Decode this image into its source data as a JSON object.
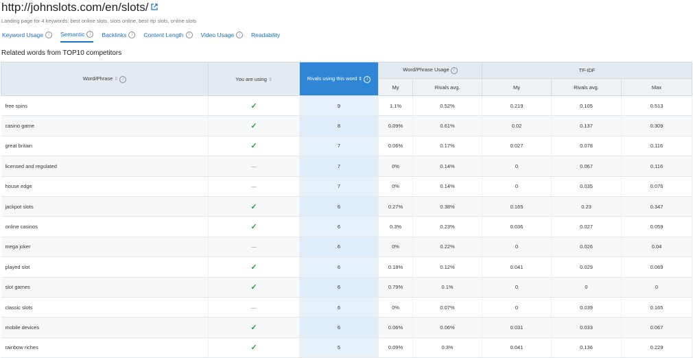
{
  "header": {
    "url": "http://johnslots.com/en/slots/",
    "subtitle": "Landing page for 4 keywords: best online slots, slots online, best rtp slots, online slots"
  },
  "tabs": [
    "Keyword Usage",
    "Semantic",
    "Backlinks",
    "Content Length",
    "Video Usage",
    "Readability"
  ],
  "section_title": "Related words from TOP10 competitors",
  "table": {
    "headers": {
      "word": "Word/Phrase",
      "using": "You are using",
      "rivals": "Rivals using this word",
      "usage": "Word/Phrase Usage",
      "tfidf": "TF-IDF"
    },
    "subheaders": [
      "My",
      "Rivals avg.",
      "My",
      "Rivals avg.",
      "Max"
    ],
    "rows": [
      [
        "free spins",
        "✓",
        "9",
        "1.1%",
        "0.52%",
        "0.219",
        "0.105",
        "0.513"
      ],
      [
        "casino game",
        "✓",
        "8",
        "0.09%",
        "0.61%",
        "0.02",
        "0.137",
        "0.309"
      ],
      [
        "great britain",
        "✓",
        "7",
        "0.06%",
        "0.17%",
        "0.027",
        "0.078",
        "0.116"
      ],
      [
        "licensed and regulated",
        "—",
        "7",
        "0%",
        "0.14%",
        "0",
        "0.067",
        "0.116"
      ],
      [
        "house edge",
        "—",
        "7",
        "0%",
        "0.14%",
        "0",
        "0.035",
        "0.076"
      ],
      [
        "jackpot slots",
        "✓",
        "6",
        "0.27%",
        "0.38%",
        "0.165",
        "0.23",
        "0.347"
      ],
      [
        "online casinos",
        "✓",
        "6",
        "0.3%",
        "0.23%",
        "0.036",
        "0.027",
        "0.059"
      ],
      [
        "mega joker",
        "—",
        "6",
        "0%",
        "0.22%",
        "0",
        "0.026",
        "0.04"
      ],
      [
        "played slot",
        "✓",
        "6",
        "0.18%",
        "0.12%",
        "0.041",
        "0.029",
        "0.069"
      ],
      [
        "slot games",
        "✓",
        "6",
        "0.79%",
        "0.1%",
        "0",
        "0",
        "0"
      ],
      [
        "classic slots",
        "—",
        "6",
        "0%",
        "0.07%",
        "0",
        "0.039",
        "0.165"
      ],
      [
        "mobile devices",
        "✓",
        "6",
        "0.06%",
        "0.06%",
        "0.031",
        "0.033",
        "0.067"
      ],
      [
        "rainbow riches",
        "✓",
        "5",
        "0.09%",
        "0.3%",
        "0.041",
        "0.136",
        "0.229"
      ]
    ]
  }
}
